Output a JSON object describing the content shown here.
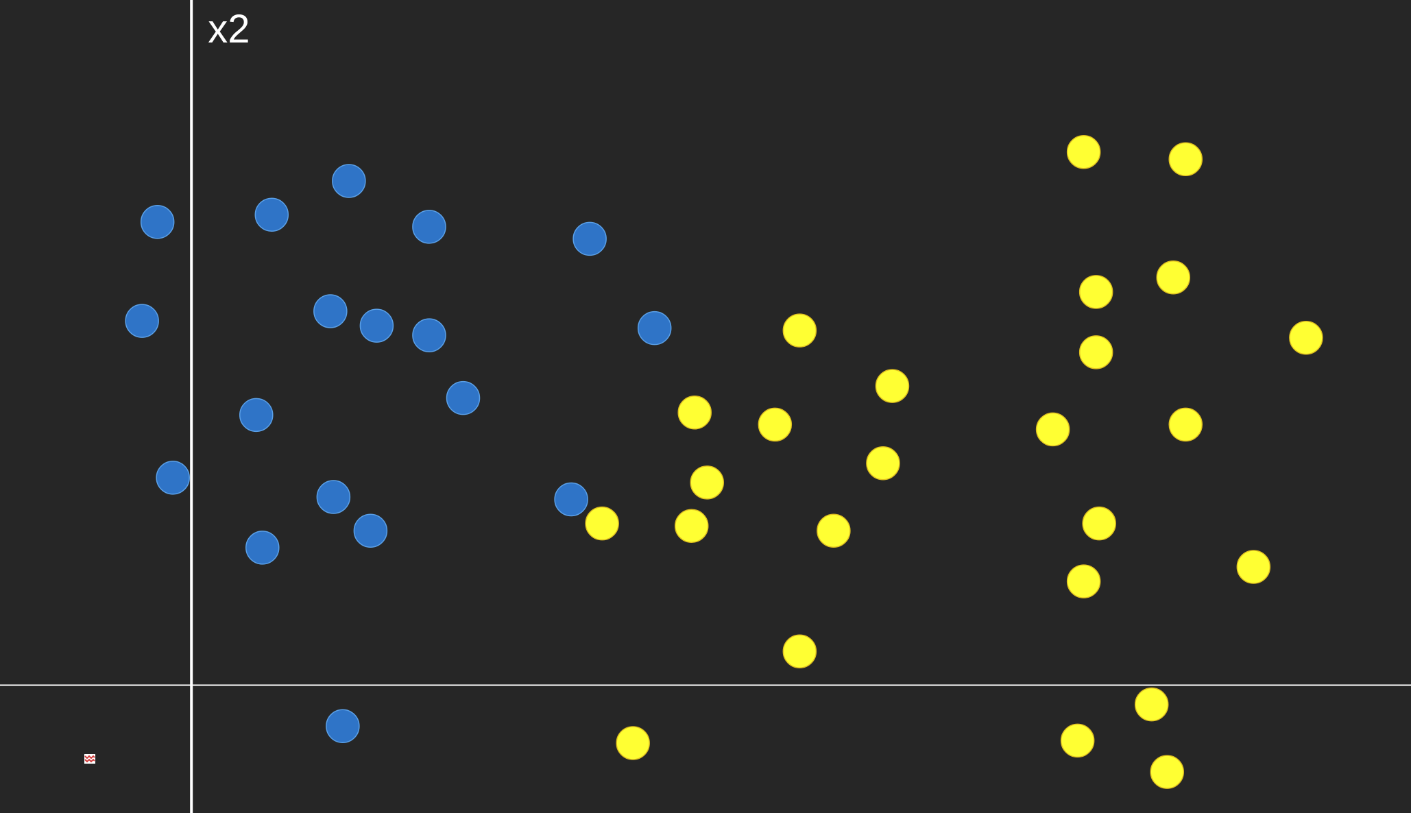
{
  "colors": {
    "background": "#262626",
    "axis": "#ffffff",
    "class_a": "#2f74c7",
    "class_a_edge": "#5aa0e8",
    "class_b": "#ffff33",
    "class_b_edge": "#e0c020"
  },
  "icons": {
    "corner_marker": "red-zigzag-icon"
  },
  "chart_data": {
    "type": "scatter",
    "title": "",
    "xlabel": "",
    "ylabel": "x2",
    "xlim": [
      -0.62,
      3.95
    ],
    "ylim": [
      -0.53,
      2.84
    ],
    "grid": false,
    "legend": "none",
    "series": [
      {
        "color": "#2f74c7",
        "points": [
          [
            -0.11,
            1.92
          ],
          [
            -0.16,
            1.51
          ],
          [
            0.26,
            1.95
          ],
          [
            0.51,
            2.09
          ],
          [
            0.77,
            1.9
          ],
          [
            1.29,
            1.85
          ],
          [
            0.45,
            1.55
          ],
          [
            0.6,
            1.49
          ],
          [
            0.77,
            1.45
          ],
          [
            1.5,
            1.48
          ],
          [
            0.88,
            1.19
          ],
          [
            0.21,
            1.12
          ],
          [
            -0.06,
            0.86
          ],
          [
            0.46,
            0.78
          ],
          [
            1.23,
            0.77
          ],
          [
            0.58,
            0.64
          ],
          [
            0.23,
            0.57
          ],
          [
            0.49,
            -0.17
          ]
        ]
      },
      {
        "color": "#ffff33",
        "points": [
          [
            2.89,
            2.21
          ],
          [
            3.22,
            2.18
          ],
          [
            2.93,
            1.63
          ],
          [
            3.18,
            1.69
          ],
          [
            3.61,
            1.44
          ],
          [
            1.97,
            1.47
          ],
          [
            2.93,
            1.38
          ],
          [
            2.27,
            1.24
          ],
          [
            1.63,
            1.13
          ],
          [
            1.89,
            1.08
          ],
          [
            2.79,
            1.06
          ],
          [
            3.22,
            1.08
          ],
          [
            1.67,
            0.84
          ],
          [
            2.24,
            0.92
          ],
          [
            1.33,
            0.67
          ],
          [
            1.62,
            0.66
          ],
          [
            2.08,
            0.64
          ],
          [
            2.94,
            0.67
          ],
          [
            3.44,
            0.49
          ],
          [
            2.89,
            0.43
          ],
          [
            1.97,
            0.14
          ],
          [
            3.11,
            -0.08
          ],
          [
            1.43,
            -0.24
          ],
          [
            2.87,
            -0.23
          ],
          [
            3.16,
            -0.36
          ]
        ]
      }
    ]
  }
}
